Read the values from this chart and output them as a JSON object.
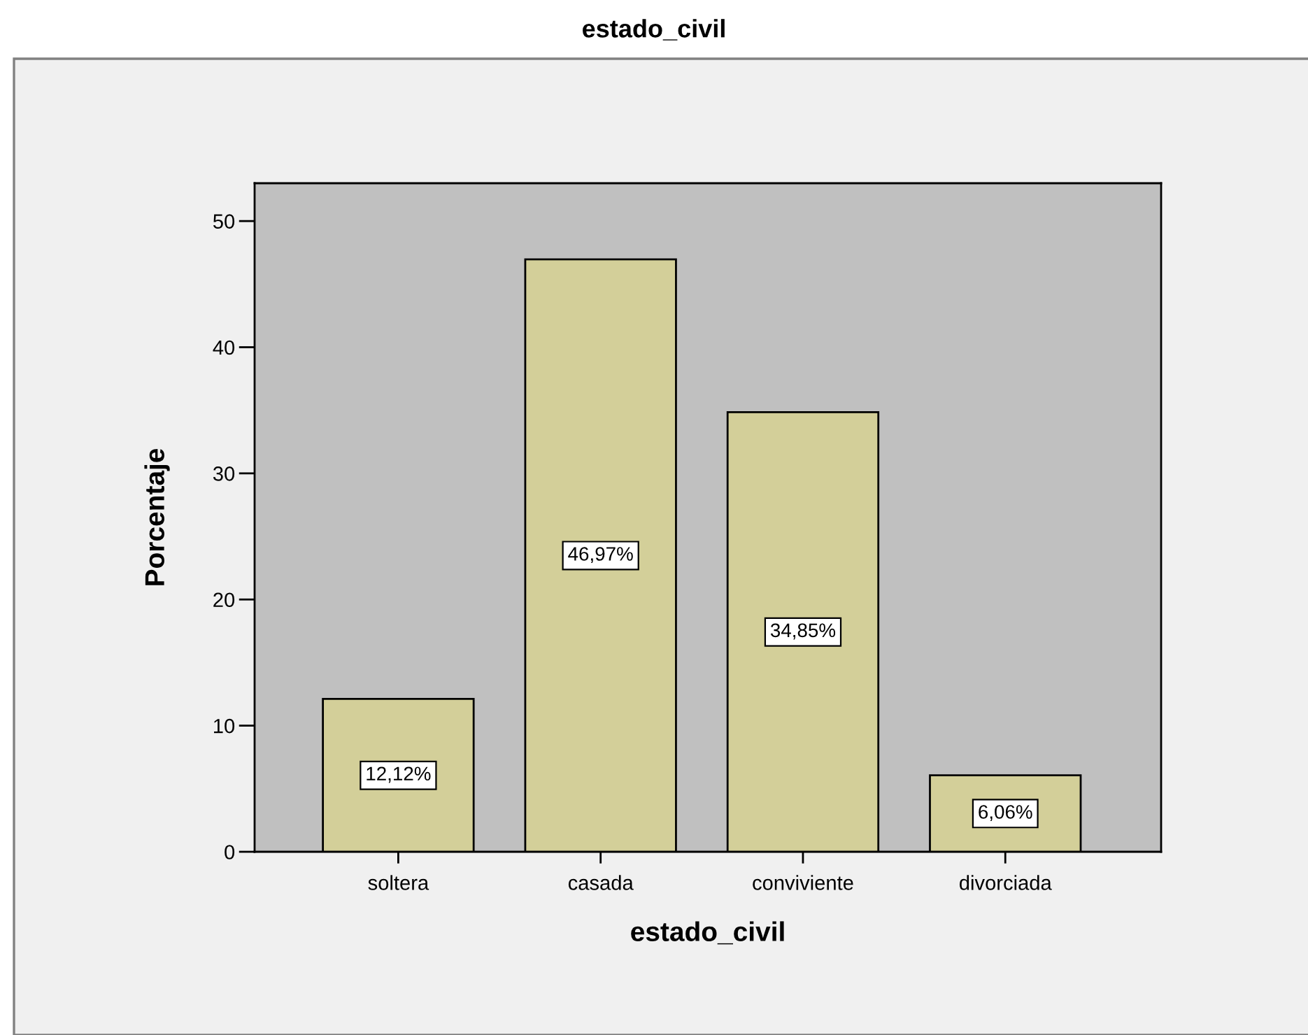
{
  "chart_data": {
    "type": "bar",
    "title": "estado_civil",
    "xlabel": "estado_civil",
    "ylabel": "Porcentaje",
    "categories": [
      "soltera",
      "casada",
      "conviviente",
      "divorciada"
    ],
    "values": [
      12.12,
      46.97,
      34.85,
      6.06
    ],
    "color": "#d3cf99",
    "value_labels": [
      "12,12%",
      "46,97%",
      "34,85%",
      "6,06%"
    ],
    "ylim": [
      0,
      53
    ],
    "yticks": [
      0,
      10,
      20,
      30,
      40,
      50
    ],
    "grid": false,
    "legend": false
  }
}
